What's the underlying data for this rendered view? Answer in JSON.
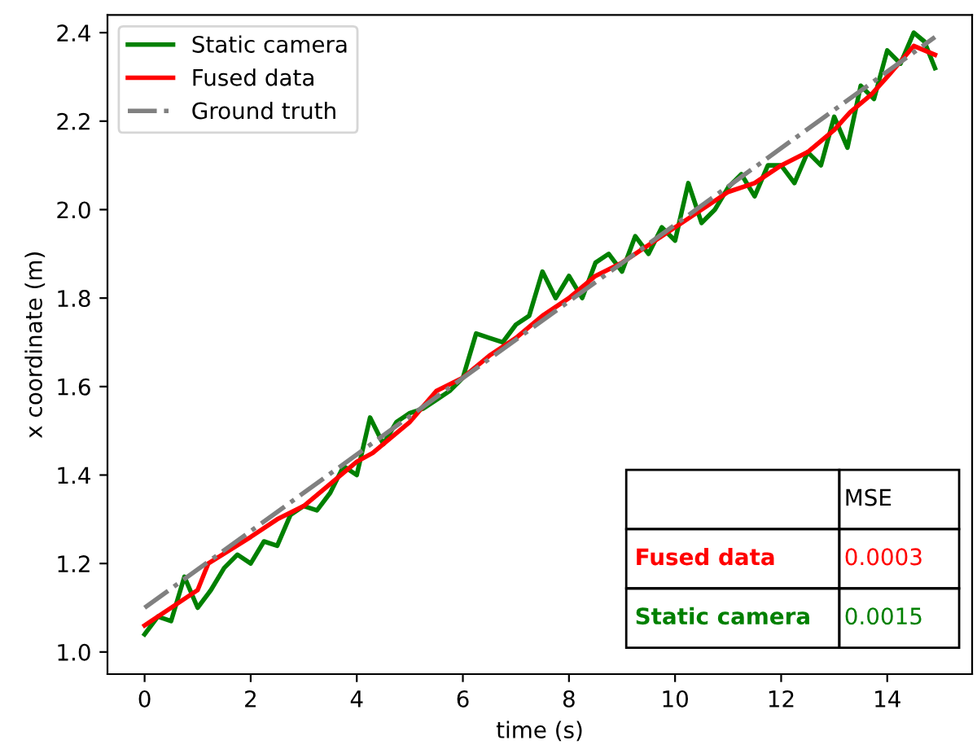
{
  "chart_data": {
    "type": "line",
    "xlabel": "time (s)",
    "ylabel": "x coordinate (m)",
    "xlim": [
      -0.7,
      15.6
    ],
    "ylim": [
      0.95,
      2.44
    ],
    "xticks": [
      0,
      2,
      4,
      6,
      8,
      10,
      12,
      14
    ],
    "yticks": [
      {
        "value": 1.0,
        "label": "1.0"
      },
      1.2,
      1.4,
      1.6,
      1.8,
      {
        "value": 2.0,
        "label": "2.0"
      },
      2.2,
      2.4
    ],
    "legend": "top left",
    "grid": false,
    "series": [
      {
        "name": "Static camera",
        "color": "#008000",
        "line_style": "solid",
        "x": [
          0,
          0.25,
          0.5,
          0.75,
          1.0,
          1.25,
          1.5,
          1.75,
          2.0,
          2.25,
          2.5,
          2.75,
          3.0,
          3.25,
          3.5,
          3.75,
          4.0,
          4.25,
          4.5,
          4.75,
          5.0,
          5.25,
          5.5,
          5.75,
          6.0,
          6.25,
          6.5,
          6.75,
          7.0,
          7.25,
          7.5,
          7.75,
          8.0,
          8.25,
          8.5,
          8.75,
          9.0,
          9.25,
          9.5,
          9.75,
          10.0,
          10.25,
          10.5,
          10.75,
          11.0,
          11.25,
          11.5,
          11.75,
          12.0,
          12.25,
          12.5,
          12.75,
          13.0,
          13.25,
          13.5,
          13.75,
          14.0,
          14.25,
          14.5,
          14.7,
          14.9
        ],
        "values": [
          1.04,
          1.08,
          1.07,
          1.17,
          1.1,
          1.14,
          1.19,
          1.22,
          1.2,
          1.25,
          1.24,
          1.31,
          1.33,
          1.32,
          1.36,
          1.42,
          1.4,
          1.53,
          1.47,
          1.52,
          1.54,
          1.55,
          1.57,
          1.59,
          1.62,
          1.72,
          1.71,
          1.7,
          1.74,
          1.76,
          1.86,
          1.8,
          1.85,
          1.8,
          1.88,
          1.9,
          1.86,
          1.94,
          1.9,
          1.96,
          1.93,
          2.06,
          1.97,
          2.0,
          2.05,
          2.08,
          2.03,
          2.1,
          2.1,
          2.06,
          2.13,
          2.1,
          2.21,
          2.14,
          2.28,
          2.25,
          2.36,
          2.33,
          2.4,
          2.38,
          2.32
        ]
      },
      {
        "name": "Fused data",
        "color": "#ff0000",
        "line_style": "solid",
        "x": [
          0,
          0.5,
          1.0,
          1.2,
          2.0,
          2.5,
          3.0,
          3.5,
          4.0,
          4.3,
          4.7,
          5.0,
          5.5,
          6.0,
          6.5,
          7.0,
          7.5,
          8.0,
          8.5,
          9.0,
          9.5,
          10.0,
          10.5,
          11.0,
          11.5,
          12.0,
          12.5,
          13.0,
          13.3,
          13.7,
          14.0,
          14.5,
          14.9
        ],
        "values": [
          1.06,
          1.1,
          1.14,
          1.2,
          1.26,
          1.3,
          1.33,
          1.38,
          1.43,
          1.45,
          1.49,
          1.52,
          1.59,
          1.62,
          1.67,
          1.71,
          1.76,
          1.8,
          1.85,
          1.88,
          1.92,
          1.96,
          2.0,
          2.04,
          2.06,
          2.1,
          2.13,
          2.18,
          2.22,
          2.26,
          2.3,
          2.37,
          2.35
        ]
      },
      {
        "name": "Ground truth",
        "color": "#808080",
        "line_style": "dashdot",
        "x": [
          0,
          14.9
        ],
        "values": [
          1.1,
          2.39
        ]
      }
    ],
    "annotations": [
      "MSE",
      "Fused data",
      "0.0003",
      "Static camera",
      "0.0015"
    ]
  }
}
